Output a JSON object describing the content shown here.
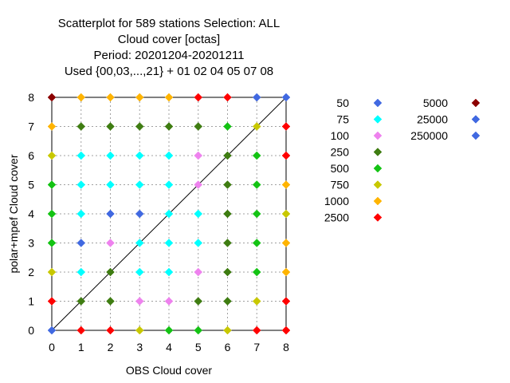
{
  "chart_data": {
    "type": "scatter",
    "title_lines": [
      "Scatterplot for  589 stations Selection: ALL",
      "Cloud cover [octas]",
      "Period: 20201204-20201211",
      "Used {00,03,...,21} + 01 02 04 05 07 08"
    ],
    "xlabel": "OBS Cloud cover",
    "ylabel": "polar+mpef Cloud cover",
    "xlim": [
      0,
      8
    ],
    "ylim": [
      0,
      8
    ],
    "xticks": [
      "0",
      "1",
      "2",
      "3",
      "4",
      "5",
      "6",
      "7",
      "8"
    ],
    "yticks": [
      "0",
      "1",
      "2",
      "3",
      "4",
      "5",
      "6",
      "7",
      "8"
    ],
    "grid": true,
    "diagonal": true,
    "legend_position": "right",
    "legend": [
      {
        "label": "50",
        "color": "#4169e1"
      },
      {
        "label": "75",
        "color": "#00ffff"
      },
      {
        "label": "100",
        "color": "#ee82ee"
      },
      {
        "label": "250",
        "color": "#3f7d12"
      },
      {
        "label": "500",
        "color": "#14c314"
      },
      {
        "label": "750",
        "color": "#c8c800"
      },
      {
        "label": "1000",
        "color": "#ffb400"
      },
      {
        "label": "2500",
        "color": "#ff0000"
      },
      {
        "label": "5000",
        "color": "#8b0000"
      },
      {
        "label": "25000",
        "color": "#4169e1"
      },
      {
        "label": "250000",
        "color": "#4169e1"
      }
    ],
    "points_by_row": [
      {
        "y": 8,
        "colors": [
          "#8b0000",
          "#ffb400",
          "#ffb400",
          "#ffb400",
          "#ffb400",
          "#ff0000",
          "#ff0000",
          "#4169e1",
          "#4169e1"
        ]
      },
      {
        "y": 7,
        "colors": [
          "#ffb400",
          "#3f7d12",
          "#3f7d12",
          "#3f7d12",
          "#3f7d12",
          "#3f7d12",
          "#14c314",
          "#c8c800",
          "#ff0000"
        ]
      },
      {
        "y": 6,
        "colors": [
          "#c8c800",
          "#00ffff",
          "#00ffff",
          "#00ffff",
          "#00ffff",
          "#ee82ee",
          "#3f7d12",
          "#14c314",
          "#ff0000"
        ]
      },
      {
        "y": 5,
        "colors": [
          "#14c314",
          "#00ffff",
          "#00ffff",
          "#00ffff",
          "#00ffff",
          "#ee82ee",
          "#3f7d12",
          "#14c314",
          "#ffb400"
        ]
      },
      {
        "y": 4,
        "colors": [
          "#14c314",
          "#00ffff",
          "#4169e1",
          "#4169e1",
          "#00ffff",
          "#00ffff",
          "#3f7d12",
          "#14c314",
          "#c8c800"
        ]
      },
      {
        "y": 3,
        "colors": [
          "#14c314",
          "#4169e1",
          "#ee82ee",
          "#00ffff",
          "#00ffff",
          "#00ffff",
          "#3f7d12",
          "#14c314",
          "#ffb400"
        ]
      },
      {
        "y": 2,
        "colors": [
          "#c8c800",
          "#00ffff",
          "#3f7d12",
          "#00ffff",
          "#00ffff",
          "#ee82ee",
          "#3f7d12",
          "#14c314",
          "#ffb400"
        ]
      },
      {
        "y": 1,
        "colors": [
          "#ff0000",
          "#3f7d12",
          "#3f7d12",
          "#ee82ee",
          "#ee82ee",
          "#3f7d12",
          "#3f7d12",
          "#c8c800",
          "#ff0000"
        ]
      },
      {
        "y": 0,
        "colors": [
          "#4169e1",
          "#ff0000",
          "#ff0000",
          "#c8c800",
          "#14c314",
          "#14c314",
          "#c8c800",
          "#ff0000",
          "#ff0000"
        ]
      }
    ]
  }
}
